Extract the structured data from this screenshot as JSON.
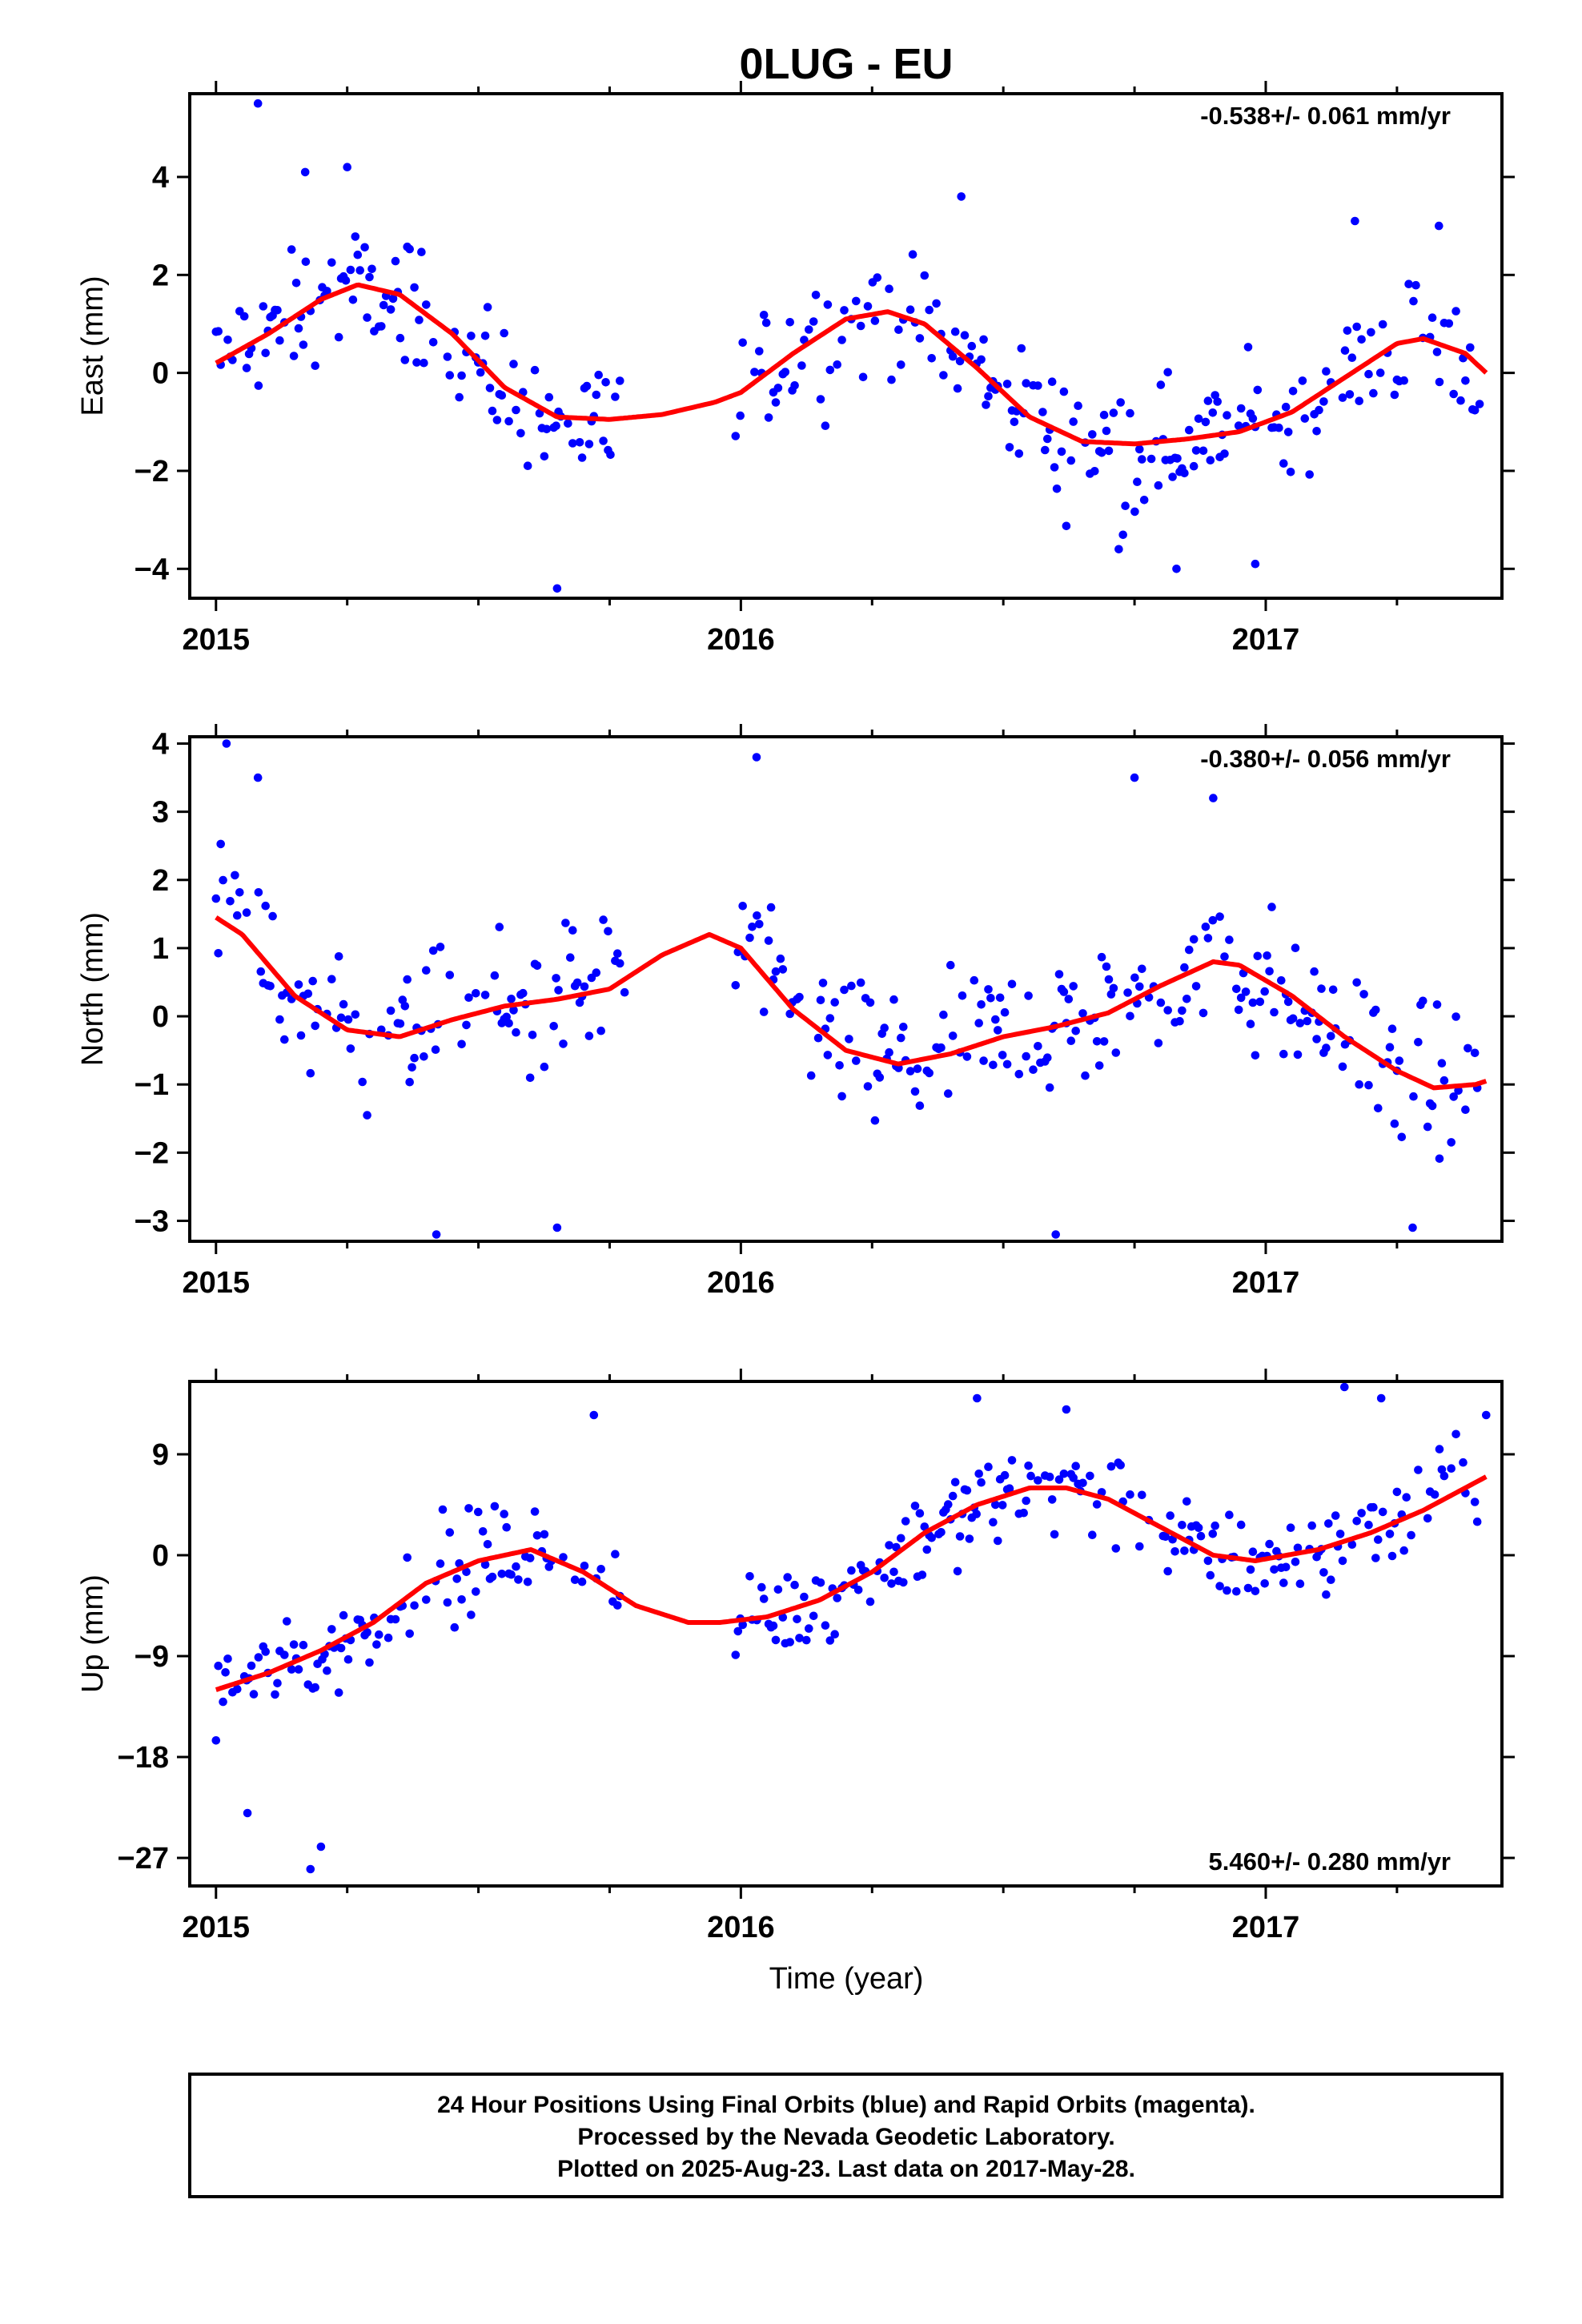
{
  "chart_data": {
    "type": "scatter",
    "title": "0LUG - EU",
    "xlabel": "Time (year)",
    "xlim": [
      2014.95,
      2017.45
    ],
    "x_major_ticks": [
      "2015",
      "2016",
      "2017"
    ],
    "colors": {
      "points": "#0000ff",
      "fit": "#ff0000",
      "frame": "#000000"
    },
    "panels": [
      {
        "ylabel": "East (mm)",
        "ylim": [
          -4.6,
          5.7
        ],
        "y_ticks": [
          "4",
          "2",
          "0",
          "−2",
          "−4"
        ],
        "rate_label": "-0.538+/- 0.061 mm/yr",
        "rate_position": "top-right",
        "fit_curve": {
          "x": [
            2015.0,
            2015.1,
            2015.2,
            2015.27,
            2015.35,
            2015.45,
            2015.55,
            2015.65,
            2015.75,
            2015.85,
            2015.95,
            2016.0,
            2016.1,
            2016.2,
            2016.28,
            2016.35,
            2016.45,
            2016.55,
            2016.65,
            2016.75,
            2016.85,
            2016.95,
            2017.05,
            2017.15,
            2017.25,
            2017.3,
            2017.38,
            2017.42
          ],
          "y": [
            0.2,
            0.8,
            1.5,
            1.8,
            1.6,
            0.8,
            -0.3,
            -0.9,
            -0.95,
            -0.85,
            -0.6,
            -0.4,
            0.4,
            1.1,
            1.25,
            1.0,
            0.1,
            -0.9,
            -1.4,
            -1.45,
            -1.35,
            -1.2,
            -0.8,
            -0.1,
            0.6,
            0.7,
            0.4,
            0.0
          ]
        },
        "gaps": [
          [
            2015.77,
            2015.99
          ]
        ],
        "trend": [
          0.4,
          -1.1
        ],
        "seasonal": [
          {
            "t0": 2015.0,
            "t1": 2015.8,
            "x": [
              2015.0,
              2015.15,
              2015.27,
              2015.4,
              2015.55,
              2015.68,
              2015.8
            ],
            "y": [
              0.2,
              1.3,
              1.8,
              1.2,
              -0.3,
              -1.3,
              -0.9
            ]
          },
          {
            "t0": 2016.0,
            "t1": 2016.9,
            "x": [
              2016.0,
              2016.15,
              2016.28,
              2016.45,
              2016.6,
              2016.75,
              2016.9
            ],
            "y": [
              -0.2,
              0.8,
              1.25,
              0.1,
              -1.3,
              -1.6,
              -1.3
            ]
          },
          {
            "t0": 2016.9,
            "t1": 2017.45,
            "x": [
              2016.9,
              2017.05,
              2017.2,
              2017.3,
              2017.42
            ],
            "y": [
              -1.3,
              -0.8,
              0.3,
              0.75,
              0.0
            ]
          }
        ],
        "noise": 1.2,
        "outliers": [
          [
            2015.08,
            5.5
          ],
          [
            2015.17,
            4.1
          ],
          [
            2015.25,
            4.2
          ],
          [
            2015.65,
            -4.4
          ],
          [
            2016.42,
            3.6
          ],
          [
            2017.17,
            3.1
          ],
          [
            2017.33,
            3.0
          ],
          [
            2016.72,
            -3.6
          ],
          [
            2016.83,
            -4.0
          ],
          [
            2016.98,
            -3.9
          ]
        ]
      },
      {
        "ylabel": "North (mm)",
        "ylim": [
          -3.3,
          4.1
        ],
        "y_ticks": [
          "4",
          "3",
          "2",
          "1",
          "0",
          "−1",
          "−2",
          "−3"
        ],
        "rate_label": "-0.380+/- 0.056 mm/yr",
        "rate_position": "top-right",
        "fit_curve": {
          "x": [
            2015.0,
            2015.05,
            2015.15,
            2015.25,
            2015.35,
            2015.45,
            2015.55,
            2015.65,
            2015.75,
            2015.85,
            2015.94,
            2016.0,
            2016.1,
            2016.2,
            2016.3,
            2016.4,
            2016.5,
            2016.6,
            2016.7,
            2016.8,
            2016.9,
            2016.95,
            2017.05,
            2017.15,
            2017.25,
            2017.32,
            2017.4,
            2017.42
          ],
          "y": [
            1.45,
            1.2,
            0.3,
            -0.2,
            -0.3,
            -0.05,
            0.15,
            0.25,
            0.4,
            0.9,
            1.2,
            1.0,
            0.1,
            -0.5,
            -0.7,
            -0.55,
            -0.3,
            -0.15,
            0.05,
            0.45,
            0.8,
            0.75,
            0.3,
            -0.3,
            -0.8,
            -1.05,
            -1.0,
            -0.95
          ]
        },
        "gaps": [
          [
            2015.78,
            2015.99
          ]
        ],
        "trend": [
          0.4,
          -0.7
        ],
        "seasonal": [
          {
            "t0": 2015.0,
            "t1": 2015.8,
            "x": [
              2015.0,
              2015.05,
              2015.15,
              2015.25,
              2015.35,
              2015.45,
              2015.55,
              2015.65,
              2015.8
            ],
            "y": [
              1.45,
              1.2,
              0.3,
              -0.2,
              -0.3,
              -0.05,
              0.15,
              0.25,
              0.6
            ]
          },
          {
            "t0": 2016.0,
            "t1": 2017.45,
            "x": [
              2016.0,
              2016.1,
              2016.2,
              2016.3,
              2016.4,
              2016.5,
              2016.6,
              2016.7,
              2016.8,
              2016.9,
              2016.95,
              2017.05,
              2017.15,
              2017.25,
              2017.32,
              2017.42
            ],
            "y": [
              1.0,
              0.1,
              -0.5,
              -0.7,
              -0.55,
              -0.3,
              -0.15,
              0.05,
              0.45,
              0.8,
              0.75,
              0.3,
              -0.3,
              -0.8,
              -1.05,
              -0.95
            ]
          }
        ],
        "noise": 1.05,
        "outliers": [
          [
            2015.02,
            4.0
          ],
          [
            2015.08,
            3.5
          ],
          [
            2016.03,
            3.8
          ],
          [
            2015.42,
            -3.2
          ],
          [
            2015.65,
            -3.1
          ],
          [
            2016.6,
            -3.2
          ],
          [
            2017.28,
            -3.1
          ],
          [
            2016.75,
            3.5
          ],
          [
            2016.9,
            3.2
          ]
        ]
      },
      {
        "ylabel": "Up (mm)",
        "ylim": [
          -29.5,
          15.5
        ],
        "y_ticks": [
          "9",
          "0",
          "−9",
          "−18",
          "−27"
        ],
        "rate_label": "5.460+/- 0.280 mm/yr",
        "rate_position": "bottom-right",
        "fit_curve": {
          "x": [
            2015.0,
            2015.1,
            2015.2,
            2015.3,
            2015.4,
            2015.5,
            2015.6,
            2015.7,
            2015.8,
            2015.9,
            2015.96,
            2016.05,
            2016.15,
            2016.25,
            2016.35,
            2016.45,
            2016.55,
            2016.62,
            2016.7,
            2016.8,
            2016.9,
            2016.98,
            2017.1,
            2017.2,
            2017.3,
            2017.42
          ],
          "y": [
            -12.0,
            -10.5,
            -8.5,
            -6.0,
            -2.5,
            -0.5,
            0.5,
            -1.5,
            -4.5,
            -6.0,
            -6.0,
            -5.5,
            -4.0,
            -1.5,
            2.0,
            4.5,
            6.0,
            6.0,
            5.0,
            2.5,
            0.0,
            -0.5,
            0.5,
            2.0,
            4.0,
            7.0
          ]
        },
        "gaps": [
          [
            2015.77,
            2015.99
          ]
        ],
        "trend": [
          -12.0,
          7.0
        ],
        "seasonal": [
          {
            "t0": 2015.0,
            "t1": 2015.8,
            "x": [
              2015.0,
              2015.1,
              2015.2,
              2015.3,
              2015.4,
              2015.5,
              2015.6,
              2015.7,
              2015.8
            ],
            "y": [
              -12.0,
              -10.5,
              -8.5,
              -6.0,
              -2.5,
              -0.5,
              0.5,
              -1.5,
              -3.5
            ]
          },
          {
            "t0": 2016.0,
            "t1": 2017.45,
            "x": [
              2016.0,
              2016.05,
              2016.15,
              2016.25,
              2016.35,
              2016.45,
              2016.55,
              2016.62,
              2016.7,
              2016.8,
              2016.9,
              2016.98,
              2017.1,
              2017.2,
              2017.3,
              2017.42
            ],
            "y": [
              -6.0,
              -5.5,
              -4.0,
              -1.5,
              2.0,
              4.5,
              6.0,
              6.0,
              5.0,
              2.5,
              0.0,
              -0.5,
              0.5,
              2.0,
              4.0,
              7.0
            ]
          }
        ],
        "noise": 4.0,
        "outliers": [
          [
            2015.18,
            -28.0
          ],
          [
            2015.2,
            -26.0
          ],
          [
            2015.06,
            -23.0
          ],
          [
            2015.72,
            12.5
          ],
          [
            2016.45,
            14.0
          ],
          [
            2017.15,
            15.0
          ],
          [
            2017.22,
            14.0
          ],
          [
            2017.42,
            12.5
          ],
          [
            2016.62,
            13.0
          ]
        ]
      }
    ]
  },
  "footer": {
    "line1": "24 Hour Positions Using Final Orbits (blue) and Rapid Orbits (magenta).",
    "line2": "Processed by the Nevada Geodetic Laboratory.",
    "line3": "Plotted on 2025-Aug-23. Last data on 2017-May-28."
  }
}
